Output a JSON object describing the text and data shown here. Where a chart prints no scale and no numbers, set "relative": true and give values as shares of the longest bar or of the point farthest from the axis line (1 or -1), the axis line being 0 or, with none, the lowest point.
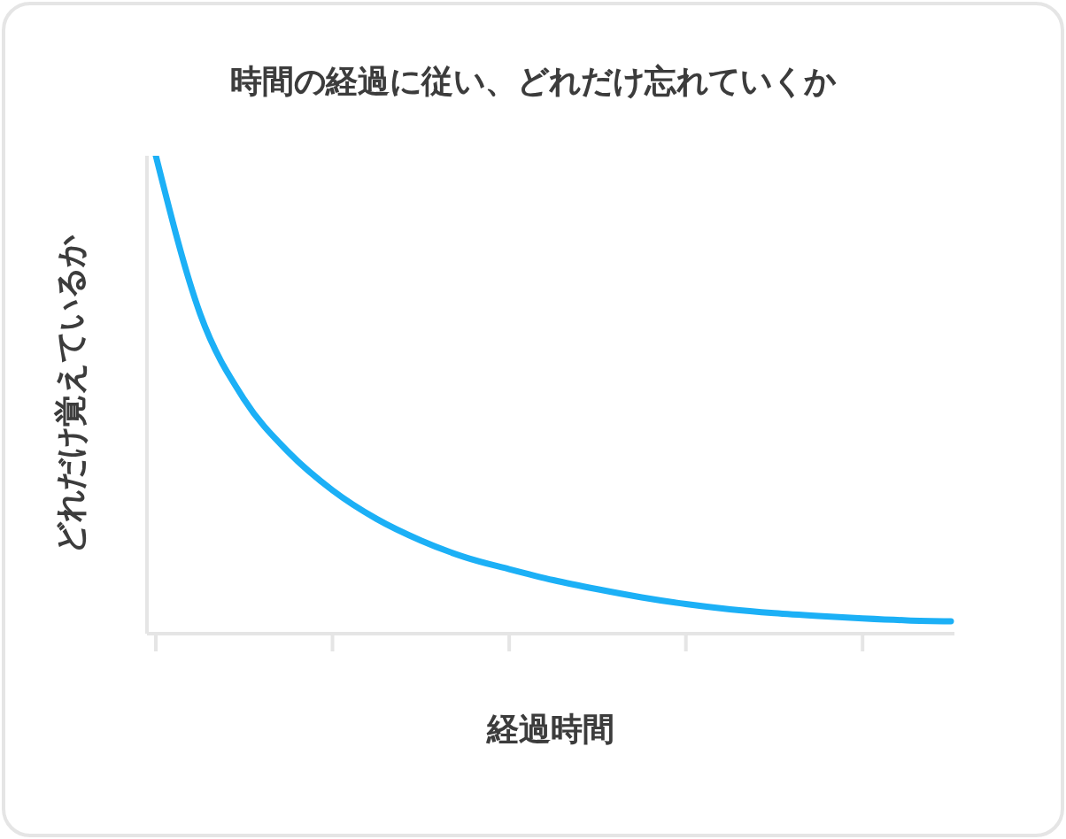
{
  "chart_data": {
    "type": "line",
    "title": "時間の経過に従い、どれだけ忘れていくか",
    "xlabel": "経過時間",
    "ylabel": "どれだけ覚えているか",
    "relative": true,
    "categories": [
      null,
      null,
      null,
      null,
      null,
      null,
      null,
      null,
      null,
      null,
      null,
      null,
      null,
      null,
      null,
      null,
      null,
      null,
      null
    ],
    "series": [
      {
        "color": "#1cb0f6",
        "values": [
          1.0,
          0.67,
          0.49,
          0.38,
          0.3,
          0.24,
          0.195,
          0.16,
          0.135,
          0.112,
          0.093,
          0.076,
          0.062,
          0.051,
          0.043,
          0.037,
          0.032,
          0.028,
          0.026
        ]
      }
    ],
    "grid": false,
    "marker": "none",
    "line_style": "solid"
  }
}
